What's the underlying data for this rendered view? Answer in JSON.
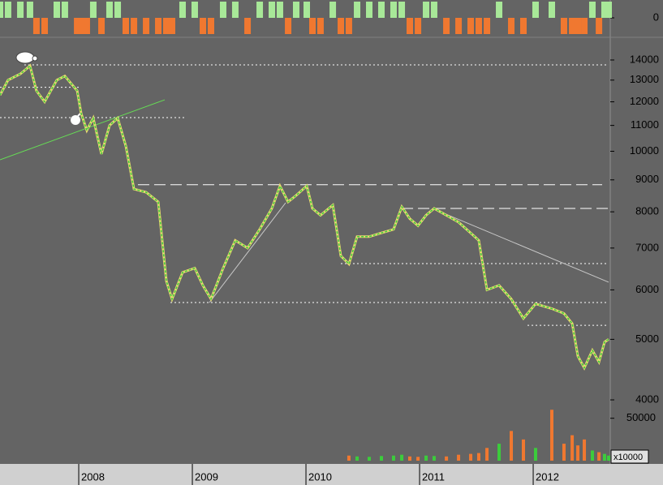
{
  "chart_data": {
    "type": "line",
    "log_scale": true,
    "color": "#3ccc3c",
    "x": [
      2007.307,
      2007.378,
      2007.486,
      2007.571,
      2007.628,
      2007.7,
      2007.807,
      2007.878,
      2007.986,
      2008.021,
      2008.071,
      2008.128,
      2008.2,
      2008.271,
      2008.343,
      2008.414,
      2008.486,
      2008.593,
      2008.7,
      2008.771,
      2008.821,
      2008.914,
      2009.021,
      2009.093,
      2009.164,
      2009.271,
      2009.378,
      2009.486,
      2009.593,
      2009.7,
      2009.771,
      2009.843,
      2009.914,
      2010.007,
      2010.057,
      2010.128,
      2010.236,
      2010.307,
      2010.378,
      2010.45,
      2010.557,
      2010.664,
      2010.771,
      2010.843,
      2010.914,
      2010.986,
      2011.057,
      2011.128,
      2011.236,
      2011.343,
      2011.45,
      2011.521,
      2011.593,
      2011.7,
      2011.807,
      2011.914,
      2012.021,
      2012.164,
      2012.271,
      2012.343,
      2012.393,
      2012.45,
      2012.521,
      2012.579,
      2012.628,
      2012.664
    ],
    "values": [
      12300,
      13000,
      13300,
      13700,
      12500,
      12000,
      13000,
      13200,
      12500,
      11500,
      10800,
      11300,
      9900,
      11000,
      11300,
      10200,
      8700,
      8600,
      8300,
      6200,
      5800,
      6400,
      6500,
      6100,
      5800,
      6500,
      7200,
      7000,
      7500,
      8100,
      8800,
      8300,
      8500,
      8800,
      8100,
      7900,
      8200,
      6800,
      6600,
      7300,
      7300,
      7400,
      7500,
      8150,
      7800,
      7600,
      7900,
      8100,
      7900,
      7700,
      7400,
      7200,
      6000,
      6100,
      5800,
      5400,
      5700,
      5600,
      5500,
      5300,
      4700,
      4500,
      4800,
      4600,
      4950,
      5000
    ],
    "xlim": [
      2007.307,
      2012.664
    ],
    "xticks": [
      2008,
      2009,
      2010,
      2011,
      2012
    ],
    "ylim": [
      3476,
      15040
    ],
    "yticks": [
      4000,
      5000,
      6000,
      7000,
      8000,
      9000,
      10000,
      11000,
      12000,
      13000,
      14000
    ],
    "levels": [
      {
        "y": 13750,
        "x": [
          2007.521,
          2012.664
        ],
        "style": "dotted"
      },
      {
        "y": 12660,
        "x": [
          2007.307,
          2008.021
        ],
        "style": "dotted"
      },
      {
        "y": 11320,
        "x": [
          2007.307,
          2008.928
        ],
        "style": "dotted"
      },
      {
        "y": 8840,
        "x": [
          2008.521,
          2012.607
        ],
        "style": "dashed"
      },
      {
        "y": 8100,
        "x": [
          2010.843,
          2012.664
        ],
        "style": "dashed"
      },
      {
        "y": 6610,
        "x": [
          2010.307,
          2012.664
        ],
        "style": "dotted"
      },
      {
        "y": 5726,
        "x": [
          2008.807,
          2012.664
        ],
        "style": "dotted"
      },
      {
        "y": 5265,
        "x": [
          2011.95,
          2012.664
        ],
        "style": "dotted"
      }
    ],
    "trendlines": [
      {
        "x": [
          2007.307,
          2008.757
        ],
        "y": [
          9690,
          12090
        ],
        "color": "#66dd55"
      },
      {
        "x": [
          2009.15,
          2009.821
        ],
        "y": [
          5726,
          8270
        ],
        "color": "#c8c8c8"
      },
      {
        "x": [
          2011.128,
          2012.664
        ],
        "y": [
          8077,
          6172
        ],
        "color": "#c8c8c8"
      }
    ],
    "volume": {
      "ylim": [
        0,
        65000
      ],
      "yticks": [
        50000
      ],
      "unit_label": "x10000",
      "values": [
        null,
        null,
        null,
        null,
        null,
        null,
        null,
        null,
        null,
        null,
        null,
        null,
        null,
        null,
        null,
        null,
        null,
        null,
        null,
        null,
        null,
        null,
        null,
        null,
        null,
        null,
        null,
        null,
        null,
        null,
        null,
        null,
        null,
        null,
        null,
        null,
        null,
        null,
        6000,
        5000,
        4500,
        5500,
        6000,
        7000,
        5000,
        4500,
        6000,
        5500,
        5000,
        7000,
        8000,
        9000,
        15000,
        20000,
        35000,
        25000,
        15000,
        60000,
        20000,
        30000,
        18000,
        25000,
        12000,
        10000,
        8000,
        6000
      ]
    },
    "indicator": {
      "ylim": [
        -1,
        1
      ],
      "yticks": [
        0
      ],
      "values": [
        1,
        1,
        1,
        1,
        -1,
        -1,
        1,
        1,
        -1,
        -1,
        -1,
        1,
        -1,
        1,
        1,
        -1,
        -1,
        -1,
        -1,
        -1,
        -1,
        1,
        1,
        -1,
        -1,
        1,
        1,
        -1,
        1,
        1,
        1,
        -1,
        1,
        1,
        -1,
        -1,
        1,
        -1,
        -1,
        1,
        1,
        1,
        1,
        1,
        -1,
        -1,
        1,
        1,
        -1,
        -1,
        -1,
        -1,
        -1,
        1,
        -1,
        -1,
        1,
        1,
        -1,
        -1,
        -1,
        -1,
        1,
        -1,
        1,
        1
      ]
    }
  }
}
